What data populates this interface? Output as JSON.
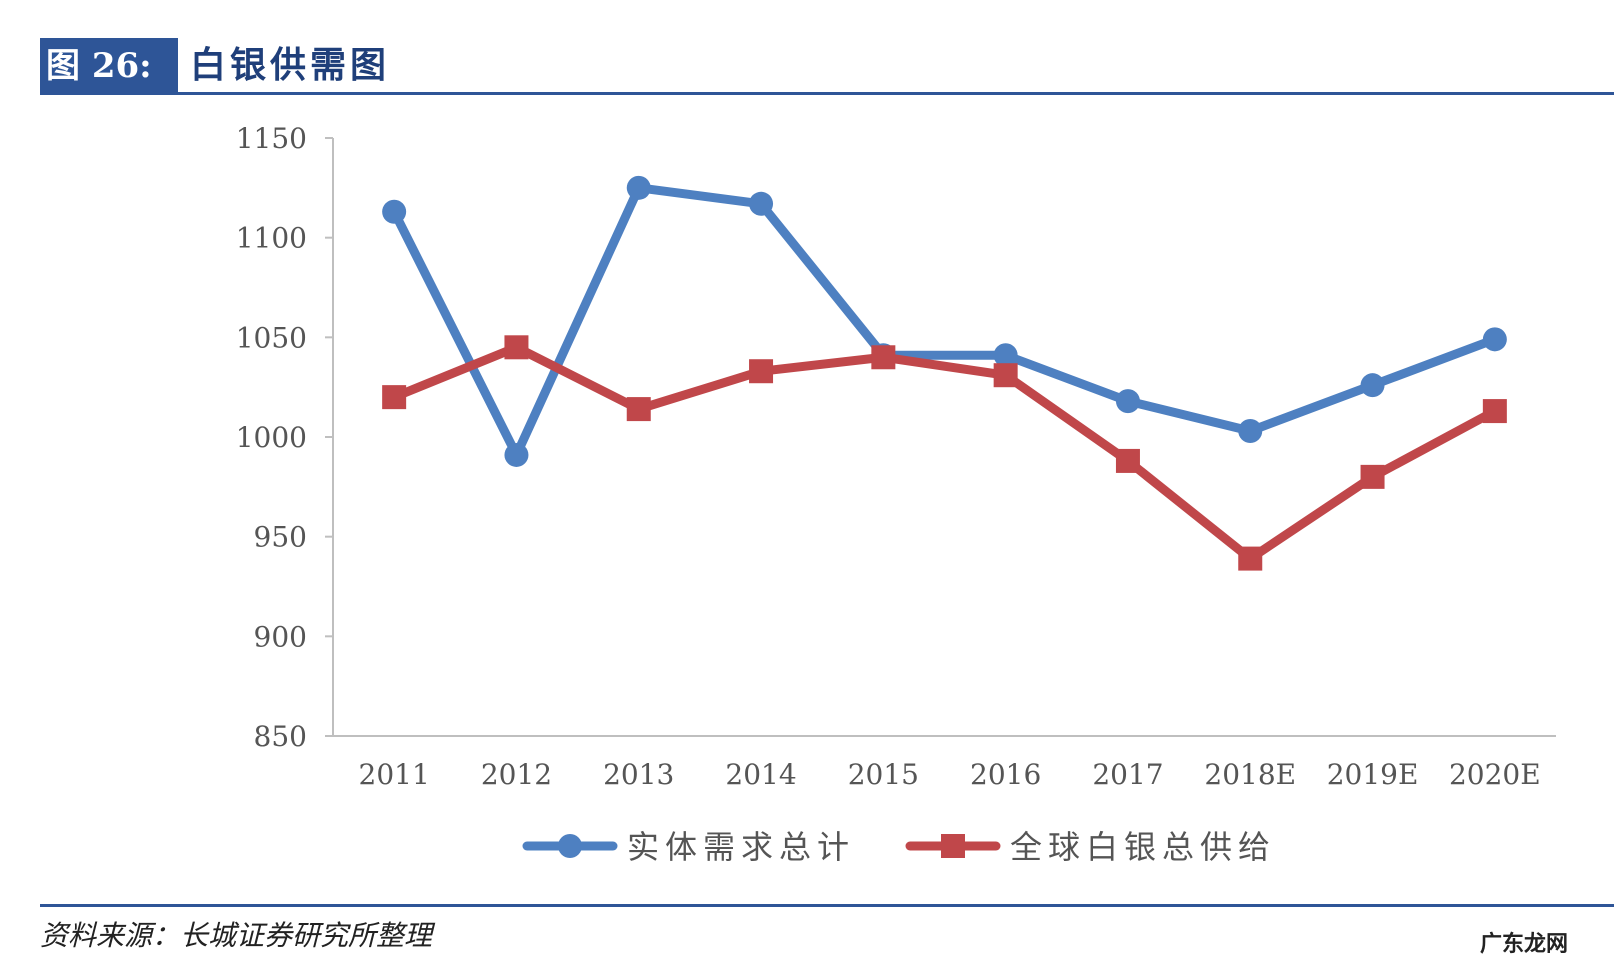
{
  "header": {
    "fig_label": "图 26:",
    "title": "白银供需图"
  },
  "source": "资料来源：长城证券研究所整理",
  "watermark": "广东龙网",
  "colors": {
    "header_bar": "#2e5597",
    "demand": "#4e80c1",
    "supply": "#c0474a"
  },
  "chart_data": {
    "type": "line",
    "categories": [
      "2011",
      "2012",
      "2013",
      "2014",
      "2015",
      "2016",
      "2017",
      "2018E",
      "2019E",
      "2020E"
    ],
    "series": [
      {
        "name": "实体需求总计",
        "marker": "circle",
        "color": "#4e80c1",
        "values": [
          1113,
          991,
          1125,
          1117,
          1041,
          1041,
          1018,
          1003,
          1026,
          1049
        ]
      },
      {
        "name": "全球白银总供给",
        "marker": "square",
        "color": "#c0474a",
        "values": [
          1020,
          1045,
          1014,
          1033,
          1040,
          1031,
          988,
          939,
          980,
          1013
        ]
      }
    ],
    "ylim": [
      850,
      1150
    ],
    "yticks": [
      850,
      900,
      950,
      1000,
      1050,
      1100,
      1150
    ],
    "legend": "bottom",
    "grid": false
  }
}
